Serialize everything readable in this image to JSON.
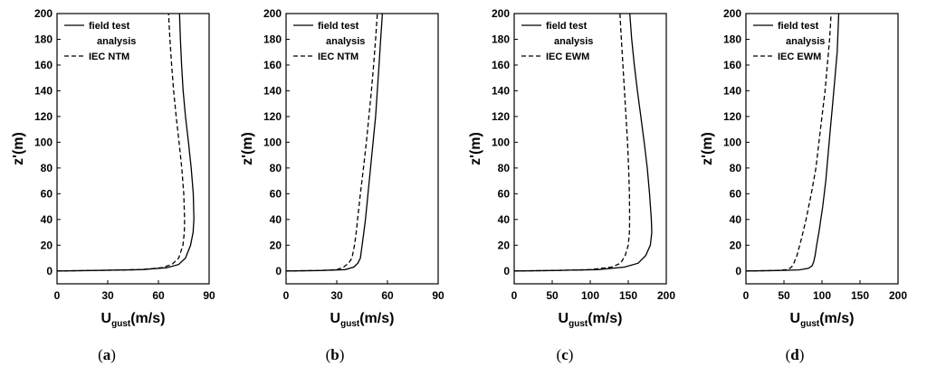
{
  "chart_data": [
    {
      "type": "line",
      "panel": "(a)",
      "xlabel_main": "U",
      "xlabel_sub": "gust",
      "xlabel_unit": "(m/s)",
      "ylabel": "z'(m)",
      "xlim": [
        0,
        90
      ],
      "ylim": [
        -10,
        200
      ],
      "xticks": [
        0,
        30,
        60,
        90
      ],
      "yticks": [
        0,
        20,
        40,
        60,
        80,
        100,
        120,
        140,
        160,
        180,
        200
      ],
      "legend_lines": [
        "field test",
        "analysis",
        "IEC NTM"
      ],
      "legend_position": "top-left",
      "series": [
        {
          "style": "solid",
          "x": [
            0,
            20,
            50,
            65,
            72,
            76,
            79,
            80.5,
            81,
            80.6,
            79.4,
            77.8,
            76,
            74.6,
            73.7,
            73,
            72.5
          ],
          "y": [
            0,
            0.3,
            1,
            2.5,
            5,
            10,
            20,
            30,
            40,
            60,
            80,
            100,
            120,
            140,
            160,
            180,
            200
          ]
        },
        {
          "style": "dashed",
          "x": [
            0,
            20,
            50,
            62,
            68,
            72,
            74.5,
            75.3,
            75.5,
            75,
            73.8,
            72.2,
            70.5,
            69,
            67.8,
            66.8,
            66
          ],
          "y": [
            0,
            0.3,
            1,
            2.5,
            5,
            10,
            20,
            30,
            40,
            60,
            80,
            100,
            120,
            140,
            160,
            180,
            200
          ]
        }
      ]
    },
    {
      "type": "line",
      "panel": "(b)",
      "xlabel_main": "U",
      "xlabel_sub": "gust",
      "xlabel_unit": "(m/s)",
      "ylabel": "z'(m)",
      "xlim": [
        0,
        90
      ],
      "ylim": [
        -10,
        200
      ],
      "xticks": [
        0,
        30,
        60,
        90
      ],
      "yticks": [
        0,
        20,
        40,
        60,
        80,
        100,
        120,
        140,
        160,
        180,
        200
      ],
      "legend_lines": [
        "field test",
        "analysis",
        "IEC NTM"
      ],
      "legend_position": "top-left",
      "series": [
        {
          "style": "solid",
          "x": [
            0,
            20,
            35,
            40,
            42.5,
            44,
            45,
            46,
            47,
            48.5,
            50,
            51.5,
            53,
            54,
            55,
            56,
            57
          ],
          "y": [
            0,
            0.3,
            1,
            3,
            6,
            10,
            20,
            30,
            40,
            60,
            80,
            100,
            120,
            140,
            160,
            180,
            200
          ]
        },
        {
          "style": "dashed",
          "x": [
            0,
            20,
            30,
            34,
            37,
            39,
            40.5,
            41.5,
            42.3,
            44,
            45.8,
            47.5,
            49,
            50.5,
            51.8,
            53,
            54
          ],
          "y": [
            0,
            0.3,
            1,
            3,
            6,
            10,
            20,
            30,
            40,
            60,
            80,
            100,
            120,
            140,
            160,
            180,
            200
          ]
        }
      ]
    },
    {
      "type": "line",
      "panel": "(c)",
      "xlabel_main": "U",
      "xlabel_sub": "gust",
      "xlabel_unit": "(m/s)",
      "ylabel": "z'(m)",
      "xlim": [
        0,
        200
      ],
      "ylim": [
        -10,
        200
      ],
      "xticks": [
        0,
        50,
        100,
        150,
        200
      ],
      "yticks": [
        0,
        20,
        40,
        60,
        80,
        100,
        120,
        140,
        160,
        180,
        200
      ],
      "legend_lines": [
        "field test",
        "analysis",
        "IEC EWM"
      ],
      "legend_position": "top-left",
      "series": [
        {
          "style": "solid",
          "x": [
            0,
            50,
            110,
            145,
            163,
            173,
            179,
            181,
            180.3,
            178,
            175,
            171,
            166.5,
            162,
            158,
            154.5,
            152
          ],
          "y": [
            0,
            0.3,
            1,
            3,
            6,
            12,
            20,
            30,
            40,
            60,
            80,
            100,
            120,
            140,
            160,
            180,
            200
          ]
        },
        {
          "style": "dashed",
          "x": [
            0,
            50,
            100,
            128,
            140,
            146,
            150,
            151.5,
            151.8,
            151.5,
            150.5,
            149,
            147,
            145,
            143,
            141,
            139
          ],
          "y": [
            0,
            0.3,
            1,
            3,
            6,
            12,
            20,
            30,
            40,
            60,
            80,
            100,
            120,
            140,
            160,
            180,
            200
          ]
        }
      ]
    },
    {
      "type": "line",
      "panel": "(d)",
      "xlabel_main": "U",
      "xlabel_sub": "gust",
      "xlabel_unit": "(m/s)",
      "ylabel": "z'(m)",
      "xlim": [
        0,
        200
      ],
      "ylim": [
        -10,
        200
      ],
      "xticks": [
        0,
        50,
        100,
        150,
        200
      ],
      "yticks": [
        0,
        20,
        40,
        60,
        80,
        100,
        120,
        140,
        160,
        180,
        200
      ],
      "legend_lines": [
        "field test",
        "analysis",
        "IEC EWM"
      ],
      "legend_position": "top-left",
      "series": [
        {
          "style": "solid",
          "x": [
            0,
            40,
            70,
            82,
            87,
            89,
            91,
            93,
            96,
            101,
            105,
            108,
            111,
            114,
            117,
            120,
            122
          ],
          "y": [
            0,
            0.3,
            0.8,
            2,
            4,
            7,
            12,
            20,
            30,
            50,
            70,
            90,
            110,
            130,
            150,
            170,
            200
          ]
        },
        {
          "style": "dashed",
          "x": [
            0,
            40,
            55,
            60,
            63,
            67,
            73,
            79,
            86,
            92,
            98,
            104,
            110,
            112
          ],
          "y": [
            0,
            0.3,
            1,
            3,
            6,
            12,
            25,
            40,
            60,
            80,
            110,
            140,
            180,
            200
          ]
        }
      ]
    }
  ]
}
